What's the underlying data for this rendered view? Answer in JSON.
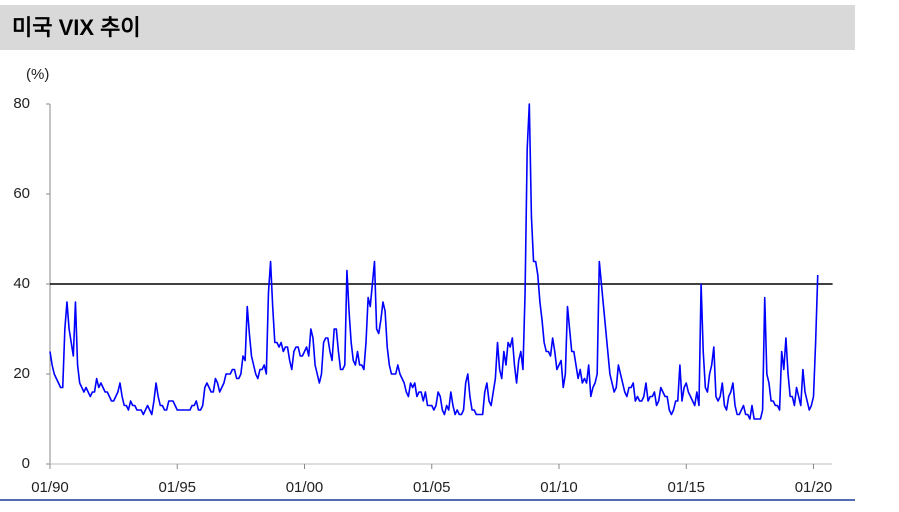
{
  "chart_data": {
    "type": "line",
    "title": "미국 VIX 추이",
    "y_unit_label": "(%)",
    "ylim": [
      0,
      80
    ],
    "yticks": [
      0,
      20,
      40,
      60,
      80
    ],
    "reference_line": 40,
    "xlim": [
      "01/90",
      "10/20"
    ],
    "xticks": [
      "01/90",
      "01/95",
      "01/00",
      "01/05",
      "01/10",
      "01/15",
      "01/20"
    ],
    "x": [
      "01/90",
      "02/90",
      "03/90",
      "04/90",
      "05/90",
      "06/90",
      "07/90",
      "08/90",
      "09/90",
      "10/90",
      "11/90",
      "12/90",
      "01/91",
      "02/91",
      "03/91",
      "04/91",
      "05/91",
      "06/91",
      "07/91",
      "08/91",
      "09/91",
      "10/91",
      "11/91",
      "12/91",
      "01/92",
      "02/92",
      "03/92",
      "04/92",
      "05/92",
      "06/92",
      "07/92",
      "08/92",
      "09/92",
      "10/92",
      "11/92",
      "12/92",
      "01/93",
      "02/93",
      "03/93",
      "04/93",
      "05/93",
      "06/93",
      "07/93",
      "08/93",
      "09/93",
      "10/93",
      "11/93",
      "12/93",
      "01/94",
      "02/94",
      "03/94",
      "04/94",
      "05/94",
      "06/94",
      "07/94",
      "08/94",
      "09/94",
      "10/94",
      "11/94",
      "12/94",
      "01/95",
      "02/95",
      "03/95",
      "04/95",
      "05/95",
      "06/95",
      "07/95",
      "08/95",
      "09/95",
      "10/95",
      "11/95",
      "12/95",
      "01/96",
      "02/96",
      "03/96",
      "04/96",
      "05/96",
      "06/96",
      "07/96",
      "08/96",
      "09/96",
      "10/96",
      "11/96",
      "12/96",
      "01/97",
      "02/97",
      "03/97",
      "04/97",
      "05/97",
      "06/97",
      "07/97",
      "08/97",
      "09/97",
      "10/97",
      "11/97",
      "12/97",
      "01/98",
      "02/98",
      "03/98",
      "04/98",
      "05/98",
      "06/98",
      "07/98",
      "08/98",
      "09/98",
      "10/98",
      "11/98",
      "12/98",
      "01/99",
      "02/99",
      "03/99",
      "04/99",
      "05/99",
      "06/99",
      "07/99",
      "08/99",
      "09/99",
      "10/99",
      "11/99",
      "12/99",
      "01/00",
      "02/00",
      "03/00",
      "04/00",
      "05/00",
      "06/00",
      "07/00",
      "08/00",
      "09/00",
      "10/00",
      "11/00",
      "12/00",
      "01/01",
      "02/01",
      "03/01",
      "04/01",
      "05/01",
      "06/01",
      "07/01",
      "08/01",
      "09/01",
      "10/01",
      "11/01",
      "12/01",
      "01/02",
      "02/02",
      "03/02",
      "04/02",
      "05/02",
      "06/02",
      "07/02",
      "08/02",
      "09/02",
      "10/02",
      "11/02",
      "12/02",
      "01/03",
      "02/03",
      "03/03",
      "04/03",
      "05/03",
      "06/03",
      "07/03",
      "08/03",
      "09/03",
      "10/03",
      "11/03",
      "12/03",
      "01/04",
      "02/04",
      "03/04",
      "04/04",
      "05/04",
      "06/04",
      "07/04",
      "08/04",
      "09/04",
      "10/04",
      "11/04",
      "12/04",
      "01/05",
      "02/05",
      "03/05",
      "04/05",
      "05/05",
      "06/05",
      "07/05",
      "08/05",
      "09/05",
      "10/05",
      "11/05",
      "12/05",
      "01/06",
      "02/06",
      "03/06",
      "04/06",
      "05/06",
      "06/06",
      "07/06",
      "08/06",
      "09/06",
      "10/06",
      "11/06",
      "12/06",
      "01/07",
      "02/07",
      "03/07",
      "04/07",
      "05/07",
      "06/07",
      "07/07",
      "08/07",
      "09/07",
      "10/07",
      "11/07",
      "12/07",
      "01/08",
      "02/08",
      "03/08",
      "04/08",
      "05/08",
      "06/08",
      "07/08",
      "08/08",
      "09/08",
      "10/08",
      "11/08",
      "12/08",
      "01/09",
      "02/09",
      "03/09",
      "04/09",
      "05/09",
      "06/09",
      "07/09",
      "08/09",
      "09/09",
      "10/09",
      "11/09",
      "12/09",
      "01/10",
      "02/10",
      "03/10",
      "04/10",
      "05/10",
      "06/10",
      "07/10",
      "08/10",
      "09/10",
      "10/10",
      "11/10",
      "12/10",
      "01/11",
      "02/11",
      "03/11",
      "04/11",
      "05/11",
      "06/11",
      "07/11",
      "08/11",
      "09/11",
      "10/11",
      "11/11",
      "12/11",
      "01/12",
      "02/12",
      "03/12",
      "04/12",
      "05/12",
      "06/12",
      "07/12",
      "08/12",
      "09/12",
      "10/12",
      "11/12",
      "12/12",
      "01/13",
      "02/13",
      "03/13",
      "04/13",
      "05/13",
      "06/13",
      "07/13",
      "08/13",
      "09/13",
      "10/13",
      "11/13",
      "12/13",
      "01/14",
      "02/14",
      "03/14",
      "04/14",
      "05/14",
      "06/14",
      "07/14",
      "08/14",
      "09/14",
      "10/14",
      "11/14",
      "12/14",
      "01/15",
      "02/15",
      "03/15",
      "04/15",
      "05/15",
      "06/15",
      "07/15",
      "08/15",
      "09/15",
      "10/15",
      "11/15",
      "12/15",
      "01/16",
      "02/16",
      "03/16",
      "04/16",
      "05/16",
      "06/16",
      "07/16",
      "08/16",
      "09/16",
      "10/16",
      "11/16",
      "12/16",
      "01/17",
      "02/17",
      "03/17",
      "04/17",
      "05/17",
      "06/17",
      "07/17",
      "08/17",
      "09/17",
      "10/17",
      "11/17",
      "12/17",
      "01/18",
      "02/18",
      "03/18",
      "04/18",
      "05/18",
      "06/18",
      "07/18",
      "08/18",
      "09/18",
      "10/18",
      "11/18",
      "12/18",
      "01/19",
      "02/19",
      "03/19",
      "04/19",
      "05/19",
      "06/19",
      "07/19",
      "08/19",
      "09/19",
      "10/19",
      "11/19",
      "12/19",
      "01/20",
      "02/20",
      "03/20"
    ],
    "series": [
      {
        "color": "#0000ff",
        "values": [
          25,
          22,
          20,
          19,
          18,
          17,
          17,
          30,
          36,
          30,
          27,
          24,
          36,
          22,
          18,
          17,
          16,
          17,
          16,
          15,
          16,
          16,
          19,
          17,
          18,
          17,
          16,
          16,
          15,
          14,
          14,
          15,
          16,
          18,
          15,
          13,
          13,
          12,
          14,
          13,
          13,
          12,
          12,
          12,
          11,
          12,
          13,
          12,
          11,
          14,
          18,
          15,
          13,
          13,
          12,
          12,
          14,
          14,
          14,
          13,
          12,
          12,
          12,
          12,
          12,
          12,
          12,
          13,
          13,
          14,
          12,
          12,
          13,
          17,
          18,
          17,
          16,
          16,
          19,
          18,
          16,
          17,
          18,
          20,
          20,
          20,
          21,
          21,
          19,
          19,
          20,
          24,
          23,
          35,
          29,
          24,
          22,
          20,
          19,
          21,
          21,
          22,
          20,
          38,
          45,
          35,
          27,
          27,
          26,
          27,
          25,
          26,
          26,
          23,
          21,
          25,
          26,
          26,
          24,
          24,
          25,
          26,
          24,
          30,
          28,
          22,
          20,
          18,
          20,
          27,
          28,
          28,
          25,
          23,
          30,
          30,
          25,
          21,
          21,
          22,
          43,
          34,
          27,
          23,
          22,
          25,
          22,
          22,
          21,
          27,
          37,
          35,
          40,
          45,
          30,
          29,
          32,
          36,
          34,
          26,
          22,
          20,
          20,
          20,
          22,
          20,
          19,
          18,
          16,
          15,
          18,
          17,
          18,
          15,
          16,
          16,
          14,
          16,
          13,
          13,
          13,
          12,
          13,
          16,
          15,
          12,
          11,
          13,
          12,
          16,
          13,
          11,
          12,
          11,
          11,
          12,
          18,
          20,
          15,
          12,
          12,
          11,
          11,
          11,
          11,
          16,
          18,
          14,
          13,
          16,
          19,
          27,
          21,
          19,
          25,
          22,
          27,
          26,
          28,
          22,
          18,
          23,
          25,
          21,
          38,
          70,
          80,
          55,
          45,
          45,
          42,
          36,
          32,
          27,
          25,
          25,
          24,
          28,
          25,
          21,
          22,
          23,
          17,
          20,
          35,
          30,
          25,
          25,
          22,
          19,
          21,
          18,
          19,
          18,
          22,
          15,
          17,
          18,
          20,
          45,
          40,
          35,
          30,
          25,
          20,
          18,
          16,
          17,
          22,
          20,
          18,
          16,
          15,
          17,
          17,
          18,
          14,
          15,
          14,
          14,
          15,
          18,
          14,
          15,
          15,
          16,
          13,
          14,
          17,
          16,
          15,
          15,
          12,
          11,
          12,
          14,
          14,
          22,
          14,
          17,
          18,
          16,
          15,
          14,
          13,
          16,
          13,
          40,
          25,
          17,
          16,
          20,
          22,
          26,
          15,
          14,
          15,
          18,
          13,
          12,
          15,
          16,
          18,
          13,
          11,
          11,
          12,
          13,
          11,
          11,
          10,
          13,
          10,
          10,
          10,
          10,
          12,
          37,
          20,
          18,
          14,
          14,
          13,
          13,
          12,
          25,
          21,
          28,
          20,
          15,
          15,
          13,
          17,
          15,
          13,
          21,
          16,
          14,
          12,
          13,
          15,
          27,
          42
        ]
      }
    ]
  }
}
